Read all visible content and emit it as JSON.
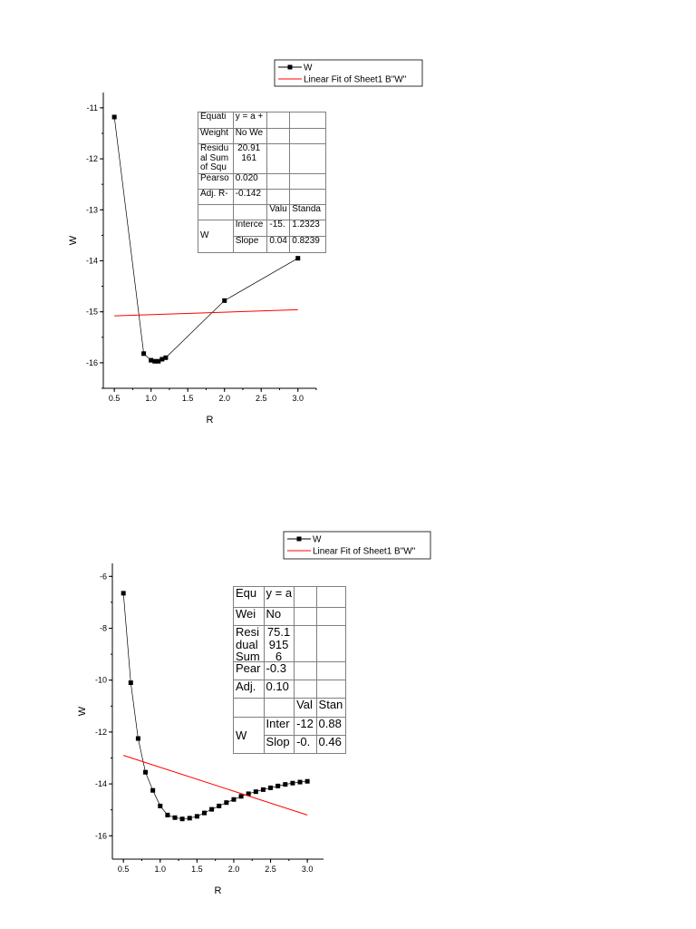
{
  "chart_data": [
    {
      "type": "line",
      "xlabel": "R",
      "ylabel": "W",
      "xlim": [
        0.35,
        3.25
      ],
      "ylim": [
        -16.5,
        -10.7
      ],
      "xticks": [
        "0.5",
        "1.0",
        "1.5",
        "2.0",
        "2.5",
        "3.0"
      ],
      "yticks": [
        "-11",
        "-12",
        "-13",
        "-14",
        "-15",
        "-16"
      ],
      "legend_position": "top-right",
      "series": [
        {
          "name": "W",
          "color": "#000000",
          "marker": "square",
          "x": [
            0.5,
            0.9,
            1.0,
            1.05,
            1.1,
            1.15,
            1.2,
            2.0,
            3.0
          ],
          "y": [
            -11.18,
            -15.82,
            -15.95,
            -15.97,
            -15.97,
            -15.93,
            -15.9,
            -14.78,
            -13.95
          ]
        },
        {
          "name": "Linear Fit of Sheet1 B\"W\"",
          "color": "#ff0000",
          "x": [
            0.5,
            3.0
          ],
          "y": [
            -15.08,
            -14.96
          ]
        }
      ],
      "fit_table": {
        "rows": [
          [
            "Equati",
            "y = a +",
            "",
            ""
          ],
          [
            "Weight",
            "No We",
            "",
            ""
          ],
          [
            "Residu al Sum of Squ",
            "20.91 161",
            "",
            ""
          ],
          [
            "Pearso",
            "0.020",
            "",
            ""
          ],
          [
            "Adj. R-",
            "-0.142",
            "",
            ""
          ],
          [
            "",
            "",
            "Valu",
            "Standa"
          ]
        ],
        "group_label": "W",
        "param_rows": [
          [
            "Interce",
            "-15.",
            "1.2323"
          ],
          [
            "Slope",
            "0.04",
            "0.8239"
          ]
        ]
      }
    },
    {
      "type": "line",
      "xlabel": "R",
      "ylabel": "W",
      "xlim": [
        0.35,
        3.22
      ],
      "ylim": [
        -16.9,
        -5.5
      ],
      "xticks": [
        "0.5",
        "1.0",
        "1.5",
        "2.0",
        "2.5",
        "3.0"
      ],
      "yticks": [
        "-6",
        "-8",
        "-10",
        "-12",
        "-14",
        "-16"
      ],
      "legend_position": "top-right",
      "series": [
        {
          "name": "W",
          "color": "#000000",
          "marker": "square",
          "x": [
            0.5,
            0.6,
            0.7,
            0.8,
            0.9,
            1.0,
            1.1,
            1.2,
            1.3,
            1.4,
            1.5,
            1.6,
            1.7,
            1.8,
            1.9,
            2.0,
            2.1,
            2.2,
            2.3,
            2.4,
            2.5,
            2.6,
            2.7,
            2.8,
            2.9,
            3.0
          ],
          "y": [
            -6.65,
            -10.1,
            -12.25,
            -13.55,
            -14.25,
            -14.85,
            -15.2,
            -15.3,
            -15.35,
            -15.32,
            -15.25,
            -15.12,
            -14.98,
            -14.85,
            -14.72,
            -14.6,
            -14.48,
            -14.38,
            -14.3,
            -14.22,
            -14.15,
            -14.08,
            -14.02,
            -13.97,
            -13.93,
            -13.9
          ]
        },
        {
          "name": "Linear Fit of Sheet1 B\"W\"",
          "color": "#ff0000",
          "x": [
            0.5,
            3.0
          ],
          "y": [
            -12.9,
            -15.2
          ]
        }
      ],
      "fit_table": {
        "rows": [
          [
            "Equ",
            "y = a",
            "",
            ""
          ],
          [
            "Wei",
            "No",
            "",
            ""
          ],
          [
            "Resi dual Sum",
            "75.1 915 6",
            "",
            ""
          ],
          [
            "Pear",
            "-0.3",
            "",
            ""
          ],
          [
            "Adj.",
            "0.10",
            "",
            ""
          ],
          [
            "",
            "",
            "Val",
            "Stan"
          ]
        ],
        "group_label": "W",
        "param_rows": [
          [
            "Inter",
            "-12",
            "0.88"
          ],
          [
            "Slop",
            "-0.",
            "0.46"
          ]
        ]
      }
    }
  ]
}
